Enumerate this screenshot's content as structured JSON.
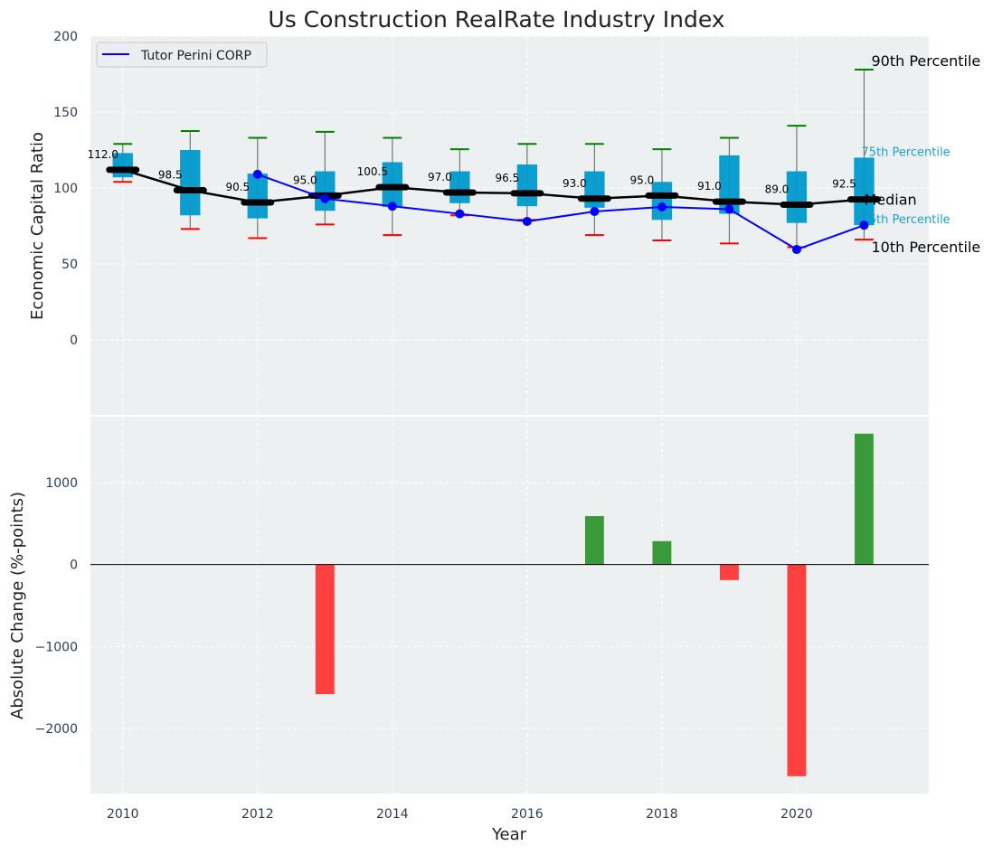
{
  "chart_data": [
    {
      "type": "box",
      "title": "Us Construction RealRate Industry Index",
      "xlabel": "",
      "ylabel": "Economic Capital Ratio",
      "ylim": [
        -49.4,
        200
      ],
      "xlim": [
        2009.52,
        2021.96
      ],
      "yticks": [
        0,
        50,
        100,
        150,
        200
      ],
      "grid": true,
      "legend": {
        "entries": [
          "Tutor Perini CORP"
        ],
        "placement": "top-left"
      },
      "years": [
        2010,
        2011,
        2012,
        2013,
        2014,
        2015,
        2016,
        2017,
        2018,
        2019,
        2020,
        2021
      ],
      "p10": [
        104,
        73,
        67,
        76,
        69,
        82,
        79,
        69,
        65.5,
        63.5,
        61,
        66
      ],
      "p25": [
        107,
        82,
        80,
        85,
        87.5,
        90,
        88,
        87,
        79,
        83,
        77,
        75.5
      ],
      "median": [
        112.0,
        98.5,
        90.5,
        95.0,
        100.5,
        97.0,
        96.5,
        93.0,
        95.0,
        91.0,
        89.0,
        92.5
      ],
      "median_labels": [
        "112.0",
        "98.5",
        "90.5",
        "95.0",
        "100.5",
        "97.0",
        "96.5",
        "93.0",
        "95.0",
        "91.0",
        "89.0",
        "92.5"
      ],
      "p75": [
        123,
        125,
        109.5,
        111,
        117,
        111,
        115.5,
        111,
        104,
        121.5,
        111,
        120
      ],
      "p90": [
        129,
        137.5,
        133,
        137,
        133,
        125.5,
        129,
        129,
        125.5,
        133,
        141,
        178
      ],
      "series": [
        {
          "name": "Tutor Perini CORP",
          "x": [
            2012,
            2013,
            2014,
            2015,
            2016,
            2017,
            2018,
            2019,
            2020,
            2021
          ],
          "values": [
            109,
            93,
            88,
            83,
            78,
            84.5,
            87.5,
            86,
            59.5,
            75.5
          ],
          "color": "#0000ff"
        }
      ],
      "annotations": [
        "90th Percentile",
        "75th Percentile",
        "Median",
        "25th Percentile",
        "10th Percentile"
      ],
      "colors": {
        "box": "#0099cc",
        "p90_cap": "#008000",
        "p10_cap": "#ff0000",
        "median": "#000000"
      }
    },
    {
      "type": "bar",
      "xlabel": "Year",
      "ylabel": "Absolute Change (%-points)",
      "ylim": [
        -2791,
        1802
      ],
      "xlim": [
        2009.52,
        2021.96
      ],
      "yticks": [
        -2000,
        -1000,
        0,
        1000
      ],
      "xticks": [
        2010,
        2012,
        2014,
        2016,
        2018,
        2020
      ],
      "grid": true,
      "categories": [
        2010,
        2011,
        2012,
        2013,
        2014,
        2015,
        2016,
        2017,
        2018,
        2019,
        2020,
        2021
      ],
      "values": [
        0,
        0,
        0,
        -1580,
        0,
        0,
        0,
        590,
        285,
        -190,
        -2580,
        1595
      ],
      "colors": {
        "positive": "#3a9a3a",
        "negative": "#ff4040"
      }
    }
  ]
}
